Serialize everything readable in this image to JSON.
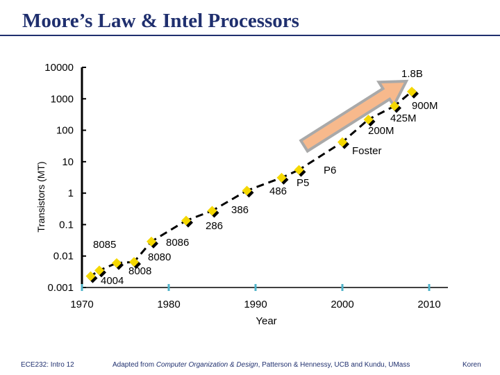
{
  "slide": {
    "title": "Moore’s Law & Intel Processors",
    "footer_left": "ECE232: Intro 12",
    "footer_center_pre": "Adapted from ",
    "footer_center_book": "Computer Organization & Design",
    "footer_center_post": ", Patterson & Hennessy, UCB and Kundu, UMass",
    "footer_right": "Koren"
  },
  "colors": {
    "marker": "#f5d800",
    "axis": "#000000",
    "trend": "#000000",
    "arrow_fill": "#f7b98c",
    "arrow_stroke": "#a9a9a9",
    "title": "#1f2f6e",
    "decade_tick": "#4fb3c9"
  },
  "chart_data": {
    "type": "scatter",
    "scale": "log-y",
    "title": "",
    "xlabel": "Year",
    "ylabel": "Transistors (MT)",
    "xlim": [
      1970,
      2012
    ],
    "ylim": [
      0.001,
      10000
    ],
    "x_ticks": [
      1970,
      1980,
      1990,
      2000,
      2010
    ],
    "y_ticks": [
      {
        "value": 0.001,
        "label": "0.001"
      },
      {
        "value": 0.01,
        "label": "0.01"
      },
      {
        "value": 0.1,
        "label": "0.1"
      },
      {
        "value": 1,
        "label": "1"
      },
      {
        "value": 10,
        "label": "10"
      },
      {
        "value": 100,
        "label": "100"
      },
      {
        "value": 1000,
        "label": "1000"
      },
      {
        "value": 10000,
        "label": "10000"
      }
    ],
    "points": [
      {
        "label": "4004",
        "x": 1971,
        "y": 0.0023
      },
      {
        "label": "8008",
        "x": 1972,
        "y": 0.0035
      },
      {
        "label": "8080",
        "x": 1974,
        "y": 0.006
      },
      {
        "label": "8085",
        "x": 1976,
        "y": 0.0065
      },
      {
        "label": "8086",
        "x": 1978,
        "y": 0.029
      },
      {
        "label": "286",
        "x": 1982,
        "y": 0.134
      },
      {
        "label": "386",
        "x": 1985,
        "y": 0.275
      },
      {
        "label": "486",
        "x": 1989,
        "y": 1.2
      },
      {
        "label": "P5",
        "x": 1993,
        "y": 3.1
      },
      {
        "label": "P6",
        "x": 1995,
        "y": 5.5
      },
      {
        "label": "200M",
        "x": 2000,
        "y": 42
      },
      {
        "label": "425M",
        "x": 2003,
        "y": 220
      },
      {
        "label": "900M",
        "x": 2006,
        "y": 590
      },
      {
        "label": "1.8B",
        "x": 2008,
        "y": 1700
      }
    ],
    "annotations": [
      {
        "text": "4004"
      },
      {
        "text": "8008"
      },
      {
        "text": "8080"
      },
      {
        "text": "8085"
      },
      {
        "text": "8086"
      },
      {
        "text": "286"
      },
      {
        "text": "386"
      },
      {
        "text": "486"
      },
      {
        "text": "P5"
      },
      {
        "text": "P6"
      },
      {
        "text": "Foster"
      },
      {
        "text": "200M"
      },
      {
        "text": "425M"
      },
      {
        "text": "900M"
      },
      {
        "text": "1.8B"
      }
    ],
    "trend_arrow": "upward growth arrow from 1995 to 2006"
  }
}
